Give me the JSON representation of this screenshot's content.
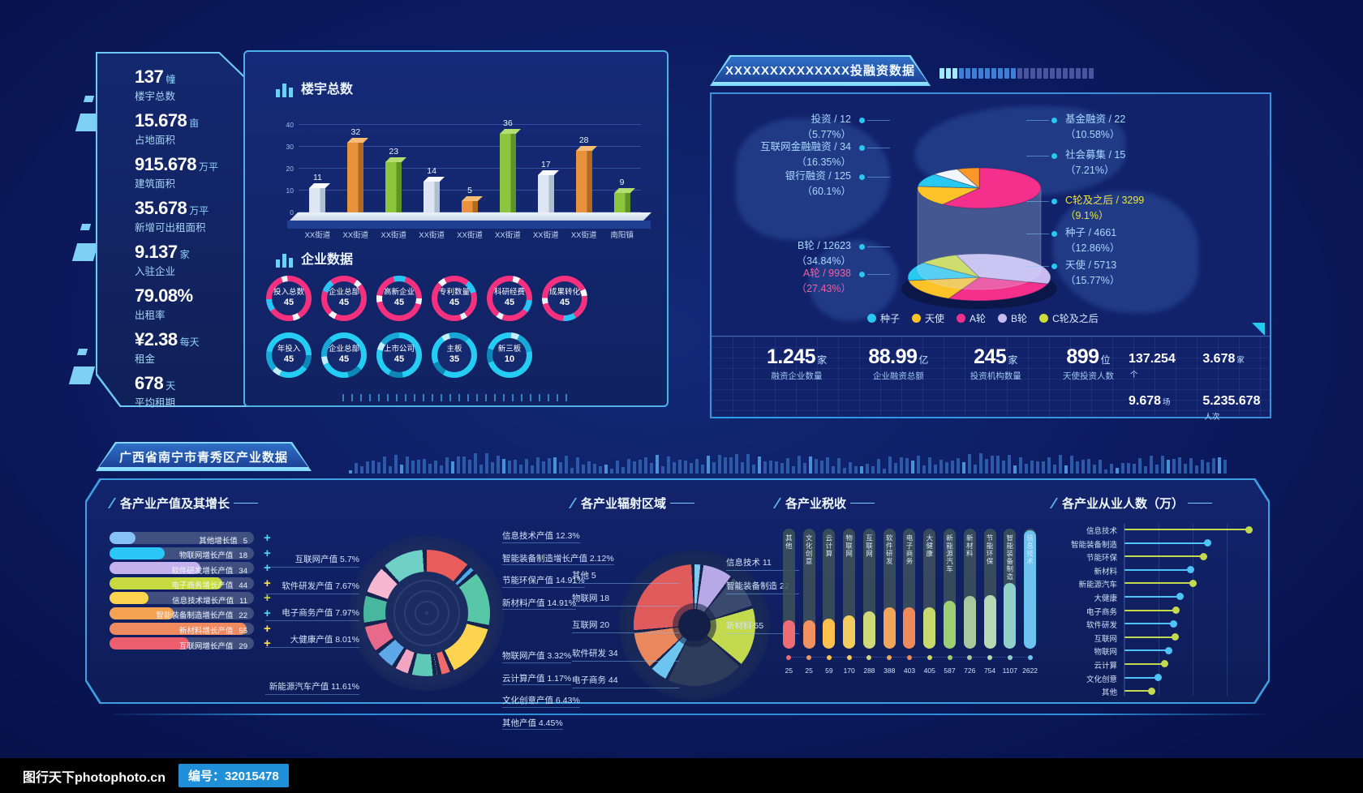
{
  "watermark": {
    "site": "图行天下photophoto.cn",
    "id_label": "编号：32015478"
  },
  "left_stats": {
    "items": [
      {
        "value": "137",
        "unit": "幢",
        "label": "楼宇总数"
      },
      {
        "value": "15.678",
        "unit": "亩",
        "label": "占地面积"
      },
      {
        "value": "915.678",
        "unit": "万平",
        "label": "建筑面积"
      },
      {
        "value": "35.678",
        "unit": "万平",
        "label": "新增可出租面积"
      },
      {
        "value": "9.137",
        "unit": "家",
        "label": "入驻企业"
      },
      {
        "value": "79.08%",
        "unit": "",
        "label": "出租率"
      },
      {
        "value": "¥2.38",
        "unit": "每天",
        "label": "租金"
      },
      {
        "value": "678",
        "unit": "天",
        "label": "平均租期"
      }
    ]
  },
  "invest_panel": {
    "header": "XXXXXXXXXXXXXX投融资数据",
    "left_labels": [
      {
        "label": "投资 / 12",
        "pct": "（5.77%）",
        "color": "#a8d8ff"
      },
      {
        "label": "互联网金融融资 / 34",
        "pct": "（16.35%）",
        "color": "#a8d8ff"
      },
      {
        "label": "银行融资 / 125",
        "pct": "（60.1%）",
        "color": "#a8d8ff"
      },
      {
        "label": "B轮 / 12623",
        "pct": "（34.84%）",
        "color": "#a8d8ff"
      },
      {
        "label": "A轮 / 9938",
        "pct": "（27.43%）",
        "color": "#f55fa0"
      }
    ],
    "right_labels": [
      {
        "label": "基金融资 / 22",
        "pct": "（10.58%）",
        "color": "#a8d8ff"
      },
      {
        "label": "社会募集 / 15",
        "pct": "（7.21%）",
        "color": "#a8d8ff"
      },
      {
        "label": "C轮及之后 / 3299",
        "pct": "（9.1%）",
        "color": "#e8e33f"
      },
      {
        "label": "种子 / 4661",
        "pct": "（12.86%）",
        "color": "#a8d8ff"
      },
      {
        "label": "天使 / 5713",
        "pct": "（15.77%）",
        "color": "#a8d8ff"
      }
    ],
    "legend": [
      {
        "label": "种子",
        "color": "#29c8f0"
      },
      {
        "label": "天使",
        "color": "#ffc32a"
      },
      {
        "label": "A轮",
        "color": "#f5308c"
      },
      {
        "label": "B轮",
        "color": "#c9baf0"
      },
      {
        "label": "C轮及之后",
        "color": "#cddc39"
      }
    ],
    "stats": [
      {
        "value": "1.245",
        "unit": "家",
        "label": "融资企业数量"
      },
      {
        "value": "88.99",
        "unit": "亿",
        "label": "企业融资总额"
      },
      {
        "value": "245",
        "unit": "家",
        "label": "投资机构数量"
      },
      {
        "value": "899",
        "unit": "位",
        "label": "天使投资人数"
      }
    ],
    "mini_stats": [
      {
        "value": "137.254",
        "unit": "个"
      },
      {
        "value": "3.678",
        "unit": "家"
      },
      {
        "value": "9.678",
        "unit": "场"
      },
      {
        "value": "5.235.678",
        "unit": "人次"
      }
    ]
  },
  "industry_panel": {
    "header": "广西省南宁市青秀区产业数据"
  },
  "chart_data": [
    {
      "id": "buildings-total",
      "type": "bar",
      "title": "楼宇总数",
      "categories": [
        "XX街道",
        "XX街道",
        "XX街道",
        "XX街道",
        "XX街道",
        "XX街道",
        "XX街道",
        "XX街道",
        "南阳镇"
      ],
      "values": [
        11,
        32,
        23,
        14,
        5,
        36,
        17,
        28,
        9
      ],
      "ylim": [
        0,
        40
      ],
      "yticks": [
        0,
        10,
        20,
        30,
        40
      ],
      "bar_color_cycle": [
        "#dde6f2",
        "#e8923e",
        "#8cc63f"
      ]
    },
    {
      "id": "enterprise-rings",
      "type": "table",
      "title": "企业数据",
      "rows": [
        [
          {
            "label": "投入总数",
            "value": 45
          },
          {
            "label": "企业总部",
            "value": 45
          },
          {
            "label": "高新企业",
            "value": 45
          },
          {
            "label": "专利数量",
            "value": 45
          },
          {
            "label": "科研经费",
            "value": 45
          },
          {
            "label": "成果转化",
            "value": 45
          }
        ],
        [
          {
            "label": "年投入",
            "value": 45
          },
          {
            "label": "企业总部",
            "value": 45
          },
          {
            "label": "上市公司",
            "value": 45
          },
          {
            "label": "主板",
            "value": 35
          },
          {
            "label": "新三板",
            "value": 10
          }
        ]
      ]
    },
    {
      "id": "investment-pie",
      "type": "pie",
      "title": "XXXXXXXXXXXXXX投融资数据",
      "series": [
        {
          "name": "融资方式",
          "slices": [
            {
              "label": "银行融资",
              "count": 125,
              "pct": 60.1,
              "color": "#f5308c"
            },
            {
              "label": "互联网金融融资",
              "count": 34,
              "pct": 16.35,
              "color": "#ffc32a"
            },
            {
              "label": "基金融资",
              "count": 22,
              "pct": 10.58,
              "color": "#29c8f0"
            },
            {
              "label": "社会募集",
              "count": 15,
              "pct": 7.21,
              "color": "#f2f5fa"
            },
            {
              "label": "投资",
              "count": 12,
              "pct": 5.77,
              "color": "#ff9828"
            }
          ]
        },
        {
          "name": "融资轮次",
          "slices": [
            {
              "label": "B轮",
              "count": 12623,
              "pct": 34.84,
              "color": "#c9baf0"
            },
            {
              "label": "A轮",
              "count": 9938,
              "pct": 27.43,
              "color": "#f5308c"
            },
            {
              "label": "天使",
              "count": 5713,
              "pct": 15.77,
              "color": "#ffc32a"
            },
            {
              "label": "种子",
              "count": 4661,
              "pct": 12.86,
              "color": "#29c8f0"
            },
            {
              "label": "C轮及之后",
              "count": 3299,
              "pct": 9.1,
              "color": "#cddc39"
            }
          ]
        }
      ]
    },
    {
      "id": "industry-growth",
      "type": "bar",
      "orientation": "horizontal",
      "title": "各产业产值及其增长",
      "categories": [
        "其他增长值",
        "物联网增长产值",
        "软件研发增长产值",
        "电子商务增长产值",
        "信息技术增长产值",
        "智能装备制造增长产值",
        "新材料增长产值",
        "互联网增长产值"
      ],
      "values": [
        5,
        18,
        34,
        44,
        11,
        22,
        55,
        29
      ],
      "colors": [
        "#85c1f5",
        "#29c6f6",
        "#c3b2ee",
        "#c6d93f",
        "#ffd44e",
        "#f5a353",
        "#ef8a5e",
        "#ed5f6e"
      ],
      "plus_colors": [
        "#4fd8f0",
        "#4fd8f0",
        "#4fd8f0",
        "#ffe34e",
        "#c6d93f",
        "#4fd8f0",
        "#ffe34e",
        "#ffe34e"
      ]
    },
    {
      "id": "industry-output",
      "type": "pie",
      "title": "各产业产值及其增长",
      "slices": [
        {
          "label": "信息技术产值",
          "pct": 12.3,
          "side": "right",
          "color": "#e85c5c"
        },
        {
          "label": "智能装备制造增长产值",
          "pct": 2.12,
          "side": "right",
          "color": "#4fa8e8"
        },
        {
          "label": "节能环保产值",
          "pct": 14.91,
          "side": "right",
          "color": "#57c7a8"
        },
        {
          "label": "新材料产值",
          "pct": 14.91,
          "side": "right",
          "color": "#ffd54f"
        },
        {
          "label": "物联网产值",
          "pct": 3.32,
          "side": "right",
          "color": "#ef6a6a"
        },
        {
          "label": "云计算产值",
          "pct": 1.17,
          "side": "right",
          "color": "#f5ecc8"
        },
        {
          "label": "文化创意产值",
          "pct": 6.43,
          "side": "right",
          "color": "#5fc9b8"
        },
        {
          "label": "其他产值",
          "pct": 4.45,
          "side": "right",
          "color": "#f2a5c0"
        },
        {
          "label": "互联网产值",
          "pct": 5.7,
          "side": "left",
          "color": "#5fa8e8"
        },
        {
          "label": "软件研发产值",
          "pct": 7.67,
          "side": "left",
          "color": "#e86a8a"
        },
        {
          "label": "电子商务产值",
          "pct": 7.97,
          "side": "left",
          "color": "#47b89e"
        },
        {
          "label": "大健康产值",
          "pct": 8.01,
          "side": "left",
          "color": "#f5b8d0"
        },
        {
          "label": "新能源汽车产值",
          "pct": 11.61,
          "side": "left",
          "color": "#6fd0c5"
        }
      ]
    },
    {
      "id": "industry-radiation",
      "type": "pie",
      "title": "各产业辐射区域",
      "slices": [
        {
          "label": "其他",
          "value": 5,
          "side": "left",
          "color": "#7fc9ee"
        },
        {
          "label": "物联网",
          "value": 18,
          "side": "left",
          "color": "#b7a8e8"
        },
        {
          "label": "互联网",
          "value": 20,
          "side": "left",
          "color": "#3a4a6e"
        },
        {
          "label": "软件研发",
          "value": 34,
          "side": "left",
          "color": "#c3d94e"
        },
        {
          "label": "电子商务",
          "value": 44,
          "side": "left",
          "color": "#2e3d5c"
        },
        {
          "label": "信息技术",
          "value": 11,
          "side": "right",
          "color": "#6cc5ee"
        },
        {
          "label": "智能装备制造",
          "value": 22,
          "side": "right",
          "color": "#e8885c"
        },
        {
          "label": "新材料",
          "value": 55,
          "side": "right",
          "color": "#e05c5c"
        }
      ]
    },
    {
      "id": "industry-tax",
      "type": "bar",
      "title": "各产业税收",
      "categories": [
        "其他",
        "文化创意",
        "云计算",
        "物联网",
        "互联网",
        "软件研发",
        "电子商务",
        "大健康",
        "新能源汽车",
        "新材料",
        "节能环保",
        "智能装备制造",
        "信息技术"
      ],
      "values": [
        25,
        25,
        59,
        170,
        288,
        388,
        403,
        405,
        587,
        726,
        754,
        1107,
        2622
      ],
      "colors": [
        "#ee6c72",
        "#f0915f",
        "#ffc04e",
        "#f2cd5e",
        "#cfd97a",
        "#f0a65a",
        "#ee8a5a",
        "#c9d96e",
        "#9ccf72",
        "#a8c9a0",
        "#b5d9b0",
        "#8fd0c9",
        "#6cc3f0"
      ]
    },
    {
      "id": "industry-employment",
      "type": "lollipop",
      "title": "各产业从业人数（万）",
      "categories": [
        "信息技术",
        "智能装备制造",
        "节能环保",
        "新材料",
        "新能源汽车",
        "大健康",
        "电子商务",
        "软件研发",
        "互联网",
        "物联网",
        "云计算",
        "文化创意",
        "其他"
      ],
      "values": [
        95,
        63,
        60,
        50,
        52,
        42,
        39,
        37,
        38,
        33,
        30,
        25,
        20
      ],
      "colors": [
        "#c3d94e",
        "#4fc3f7",
        "#c3d94e",
        "#4fc3f7",
        "#c3d94e",
        "#4fc3f7",
        "#c3d94e",
        "#4fc3f7",
        "#c3d94e",
        "#4fc3f7",
        "#c3d94e",
        "#4fc3f7",
        "#c3d94e"
      ]
    }
  ]
}
